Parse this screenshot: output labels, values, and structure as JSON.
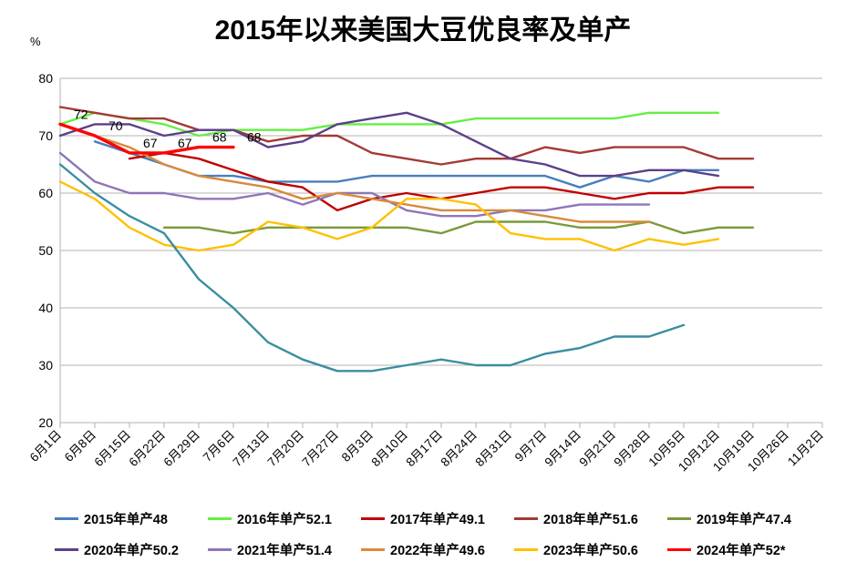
{
  "chart_data": {
    "type": "line",
    "title": "2015年以来美国大豆优良率及单产",
    "ylabel": "%",
    "xlabel": "",
    "ylim": [
      20,
      80
    ],
    "yticks": [
      20,
      30,
      40,
      50,
      60,
      70,
      80
    ],
    "grid": true,
    "legend_placement": "bottom",
    "categories": [
      "6月1日",
      "6月8日",
      "6月15日",
      "6月22日",
      "6月29日",
      "7月6日",
      "7月13日",
      "7月20日",
      "7月27日",
      "8月3日",
      "8月10日",
      "8月17日",
      "8月24日",
      "8月31日",
      "9月7日",
      "9月14日",
      "9月21日",
      "9月28日",
      "10月5日",
      "10月12日",
      "10月19日",
      "10月26日",
      "11月2日"
    ],
    "series": [
      {
        "name": "2015年单产48",
        "color": "#4a7ebb",
        "values": [
          null,
          69,
          67,
          65,
          63,
          63,
          62,
          62,
          62,
          63,
          63,
          63,
          63,
          63,
          63,
          61,
          63,
          62,
          64,
          64,
          null,
          null,
          null
        ]
      },
      {
        "name": "2016年单产52.1",
        "color": "#66ee44",
        "values": [
          72,
          74,
          73,
          72,
          70,
          71,
          71,
          71,
          72,
          72,
          72,
          72,
          73,
          73,
          73,
          73,
          73,
          74,
          74,
          74,
          null,
          null,
          null
        ]
      },
      {
        "name": "2017年单产49.1",
        "color": "#c00000",
        "values": [
          null,
          null,
          66,
          67,
          66,
          64,
          62,
          61,
          57,
          59,
          60,
          59,
          60,
          61,
          61,
          60,
          59,
          60,
          60,
          61,
          61,
          null,
          null
        ]
      },
      {
        "name": "2018年单产51.6",
        "color": "#a33a34",
        "values": [
          75,
          74,
          73,
          73,
          71,
          71,
          69,
          70,
          70,
          67,
          66,
          65,
          66,
          66,
          68,
          67,
          68,
          68,
          68,
          66,
          66,
          null,
          null
        ]
      },
      {
        "name": "2019年单产47.4",
        "color": "#7a9a3a",
        "values": [
          null,
          null,
          null,
          54,
          54,
          53,
          54,
          54,
          54,
          54,
          54,
          53,
          55,
          55,
          55,
          54,
          54,
          55,
          53,
          54,
          54,
          null,
          null
        ]
      },
      {
        "name": "2020年单产50.2",
        "color": "#5b3f8a",
        "values": [
          70,
          72,
          72,
          70,
          71,
          71,
          68,
          69,
          72,
          73,
          74,
          72,
          69,
          66,
          65,
          63,
          63,
          64,
          64,
          63,
          null,
          null,
          null
        ]
      },
      {
        "name": "2021年单产51.4",
        "color": "#8e76b8",
        "values": [
          67,
          62,
          60,
          60,
          59,
          59,
          60,
          58,
          60,
          60,
          57,
          56,
          56,
          57,
          57,
          58,
          58,
          58,
          null,
          null,
          null,
          null,
          null
        ]
      },
      {
        "name": "2022年单产49.6",
        "color": "#d88a3a",
        "values": [
          72,
          70,
          68,
          65,
          63,
          62,
          61,
          59,
          60,
          59,
          58,
          57,
          57,
          57,
          56,
          55,
          55,
          55,
          null,
          null,
          null,
          null,
          null
        ]
      },
      {
        "name": "2023年单产50.6",
        "color": "#ffc000",
        "values": [
          62,
          59,
          54,
          51,
          50,
          51,
          55,
          54,
          52,
          54,
          59,
          59,
          58,
          53,
          52,
          52,
          50,
          52,
          51,
          52,
          null,
          null,
          null
        ]
      },
      {
        "name": "2024年单产52*",
        "color": "#ff0000",
        "values": [
          72,
          70,
          67,
          67,
          68,
          68,
          null,
          null,
          null,
          null,
          null,
          null,
          null,
          null,
          null,
          null,
          null,
          null,
          null,
          null,
          null,
          null,
          null
        ]
      },
      {
        "name": "",
        "color": "#3a8ea0",
        "values": [
          65,
          60,
          56,
          53,
          45,
          40,
          34,
          31,
          29,
          29,
          30,
          31,
          30,
          30,
          32,
          33,
          35,
          35,
          37,
          null,
          null,
          null,
          null
        ]
      }
    ],
    "annotations": [
      {
        "series": "2024年单产52*",
        "x": "6月1日",
        "label": "72"
      },
      {
        "series": "2024年单产52*",
        "x": "6月8日",
        "label": "70"
      },
      {
        "series": "2024年单产52*",
        "x": "6月15日",
        "label": "67"
      },
      {
        "series": "2024年单产52*",
        "x": "6月22日",
        "label": "67"
      },
      {
        "series": "2024年单产52*",
        "x": "6月29日",
        "label": "68"
      },
      {
        "series": "2024年单产52*",
        "x": "7月6日",
        "label": "68"
      }
    ]
  }
}
